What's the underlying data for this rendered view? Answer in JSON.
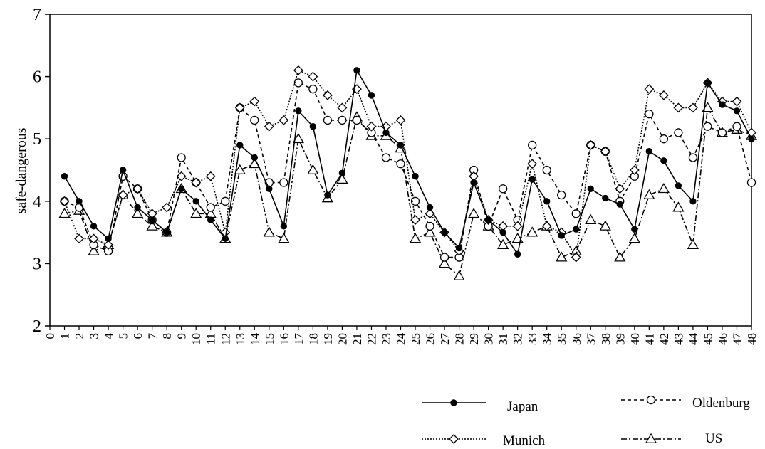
{
  "chart_data": {
    "type": "line",
    "title": "",
    "xlabel": "",
    "ylabel": "safe-dangerous",
    "xlim": [
      0,
      48
    ],
    "ylim": [
      2,
      7
    ],
    "x_ticks": [
      0,
      1,
      2,
      3,
      4,
      5,
      6,
      7,
      8,
      9,
      10,
      11,
      12,
      13,
      14,
      15,
      16,
      17,
      18,
      19,
      20,
      21,
      22,
      23,
      24,
      25,
      26,
      27,
      28,
      29,
      30,
      31,
      32,
      33,
      34,
      35,
      36,
      37,
      38,
      39,
      40,
      41,
      42,
      43,
      44,
      45,
      46,
      47,
      48
    ],
    "y_ticks": [
      2,
      3,
      4,
      5,
      6,
      7
    ],
    "grid": false,
    "legend_position": "bottom-right",
    "x": [
      1,
      2,
      3,
      4,
      5,
      6,
      7,
      8,
      9,
      10,
      11,
      12,
      13,
      14,
      15,
      16,
      17,
      18,
      19,
      20,
      21,
      22,
      23,
      24,
      25,
      26,
      27,
      28,
      29,
      30,
      31,
      32,
      33,
      34,
      35,
      36,
      37,
      38,
      39,
      40,
      41,
      42,
      43,
      44,
      45,
      46,
      47,
      48
    ],
    "series": [
      {
        "name": "Japan",
        "marker": "filled-circle",
        "line": "solid",
        "values": [
          4.4,
          4.0,
          3.6,
          3.4,
          4.5,
          3.9,
          3.7,
          3.5,
          4.2,
          4.0,
          3.7,
          3.4,
          4.9,
          4.7,
          4.2,
          3.6,
          5.45,
          5.2,
          4.1,
          4.45,
          6.1,
          5.7,
          5.1,
          4.9,
          4.4,
          3.9,
          3.5,
          3.25,
          4.3,
          3.7,
          3.5,
          3.15,
          4.35,
          4.0,
          3.45,
          3.55,
          4.2,
          4.05,
          3.95,
          3.55,
          4.8,
          4.65,
          4.25,
          4.0,
          5.9,
          5.55,
          5.45,
          5.0
        ]
      },
      {
        "name": "Oldenburg",
        "marker": "open-circle",
        "line": "dashed",
        "values": [
          4.0,
          3.9,
          3.3,
          3.2,
          4.4,
          4.2,
          3.7,
          3.5,
          4.7,
          4.3,
          3.9,
          4.0,
          5.5,
          5.3,
          4.3,
          4.3,
          5.9,
          5.8,
          5.3,
          5.3,
          5.3,
          5.1,
          4.7,
          4.6,
          4.0,
          3.6,
          3.1,
          3.1,
          4.5,
          3.6,
          4.2,
          3.7,
          4.9,
          4.5,
          4.1,
          3.8,
          4.9,
          4.8,
          4.0,
          4.4,
          5.4,
          5.0,
          5.1,
          4.7,
          5.2,
          5.1,
          5.2,
          4.3
        ]
      },
      {
        "name": "Munich",
        "marker": "open-diamond",
        "line": "dotted",
        "values": [
          4.0,
          3.4,
          3.4,
          3.3,
          4.1,
          4.2,
          3.8,
          3.9,
          4.4,
          4.3,
          4.4,
          3.5,
          5.5,
          5.6,
          5.2,
          5.3,
          6.1,
          6.0,
          5.7,
          5.5,
          5.8,
          5.2,
          5.2,
          5.3,
          3.7,
          3.8,
          3.5,
          3.2,
          4.4,
          3.7,
          3.6,
          3.6,
          4.6,
          3.6,
          3.5,
          3.1,
          4.9,
          4.8,
          4.2,
          4.5,
          5.8,
          5.7,
          5.5,
          5.5,
          5.9,
          5.6,
          5.6,
          5.1
        ]
      },
      {
        "name": "US",
        "marker": "open-triangle",
        "line": "dash-dot",
        "values": [
          3.8,
          3.85,
          3.2,
          3.3,
          4.1,
          3.8,
          3.6,
          3.5,
          4.2,
          3.8,
          3.8,
          3.4,
          4.5,
          4.6,
          3.5,
          3.4,
          5.0,
          4.5,
          4.05,
          4.35,
          5.35,
          5.05,
          5.05,
          4.85,
          3.4,
          3.5,
          3.0,
          2.8,
          3.8,
          3.6,
          3.3,
          3.4,
          3.5,
          3.6,
          3.1,
          3.2,
          3.7,
          3.6,
          3.1,
          3.4,
          4.1,
          4.2,
          3.9,
          3.3,
          5.5,
          5.1,
          5.15,
          5.05
        ]
      }
    ]
  }
}
